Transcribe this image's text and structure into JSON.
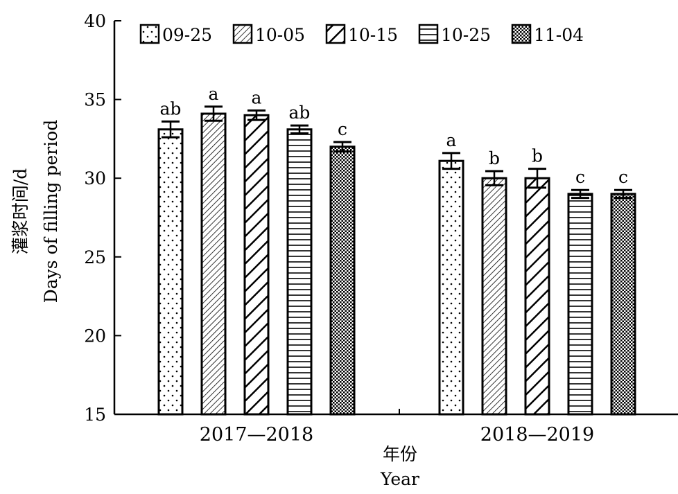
{
  "chart_data": {
    "type": "bar",
    "ylabel_cn": "灌浆时间/d",
    "ylabel_en": "Days of filling period",
    "xlabel_cn": "年份",
    "xlabel_en": "Year",
    "ylim": [
      15,
      40
    ],
    "yticks": [
      15,
      20,
      25,
      30,
      35,
      40
    ],
    "categories": [
      "2017—2018",
      "2018—2019"
    ],
    "legend_position": "top",
    "grid": false,
    "series": [
      {
        "name": "09-25",
        "pattern": "dots",
        "values": [
          33.1,
          31.1
        ],
        "errors": [
          0.5,
          0.5
        ],
        "letters": [
          "ab",
          "a"
        ]
      },
      {
        "name": "10-05",
        "pattern": "fine-diag",
        "values": [
          34.1,
          30.0
        ],
        "errors": [
          0.45,
          0.45
        ],
        "letters": [
          "a",
          "b"
        ]
      },
      {
        "name": "10-15",
        "pattern": "bold-diag",
        "values": [
          34.0,
          30.0
        ],
        "errors": [
          0.3,
          0.6
        ],
        "letters": [
          "a",
          "b"
        ]
      },
      {
        "name": "10-25",
        "pattern": "horizontal",
        "values": [
          33.1,
          29.0
        ],
        "errors": [
          0.25,
          0.25
        ],
        "letters": [
          "ab",
          "c"
        ]
      },
      {
        "name": "11-04",
        "pattern": "checker",
        "values": [
          32.0,
          29.0
        ],
        "errors": [
          0.3,
          0.25
        ],
        "letters": [
          "c",
          "c"
        ]
      }
    ]
  }
}
